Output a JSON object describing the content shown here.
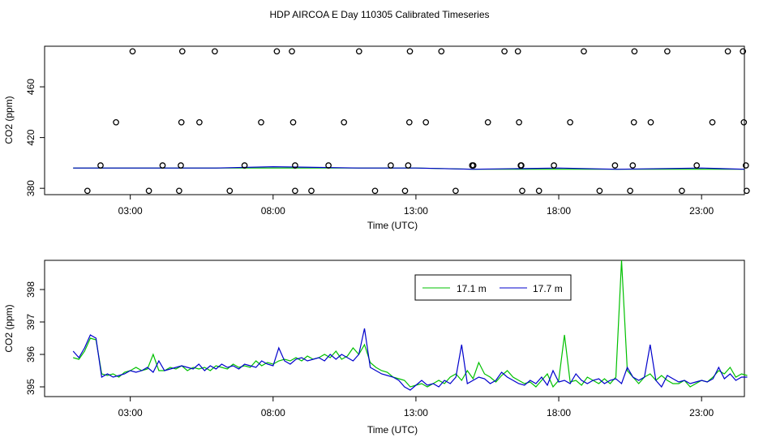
{
  "figure": {
    "title": "HDP AIRCOA E  Day 110305  Calibrated Timeseries"
  },
  "colors": {
    "series_a": "#00c000",
    "series_b": "#0000cc",
    "axis": "#000000",
    "markers": "#000000"
  },
  "chart_data": [
    {
      "type": "scatter",
      "xlabel": "Time (UTC)",
      "ylabel": "CO2 (ppm)",
      "xlim": [
        0,
        24.5
      ],
      "ylim": [
        375,
        492
      ],
      "x_ticks": [
        3,
        8,
        13,
        18,
        23
      ],
      "x_tick_labels": [
        "03:00",
        "08:00",
        "13:00",
        "18:00",
        "23:00"
      ],
      "y_ticks": [
        380,
        420,
        460
      ],
      "y_tick_labels": [
        "380",
        "420",
        "460"
      ],
      "grid": false,
      "legend": "none",
      "points": [
        {
          "x": 1.5,
          "y": 378
        },
        {
          "x": 1.96,
          "y": 398
        },
        {
          "x": 2.5,
          "y": 432
        },
        {
          "x": 3.08,
          "y": 488
        },
        {
          "x": 3.65,
          "y": 378
        },
        {
          "x": 4.13,
          "y": 398
        },
        {
          "x": 4.71,
          "y": 378
        },
        {
          "x": 4.77,
          "y": 398
        },
        {
          "x": 4.79,
          "y": 432
        },
        {
          "x": 4.82,
          "y": 488
        },
        {
          "x": 5.42,
          "y": 432
        },
        {
          "x": 5.96,
          "y": 488
        },
        {
          "x": 6.48,
          "y": 378
        },
        {
          "x": 7.0,
          "y": 398
        },
        {
          "x": 7.58,
          "y": 432
        },
        {
          "x": 8.13,
          "y": 488
        },
        {
          "x": 8.66,
          "y": 488
        },
        {
          "x": 8.7,
          "y": 432
        },
        {
          "x": 8.77,
          "y": 378
        },
        {
          "x": 8.77,
          "y": 398
        },
        {
          "x": 9.34,
          "y": 378
        },
        {
          "x": 9.94,
          "y": 398
        },
        {
          "x": 10.48,
          "y": 432
        },
        {
          "x": 11.01,
          "y": 488
        },
        {
          "x": 11.57,
          "y": 378
        },
        {
          "x": 12.12,
          "y": 398
        },
        {
          "x": 12.62,
          "y": 378
        },
        {
          "x": 12.73,
          "y": 398
        },
        {
          "x": 12.77,
          "y": 432
        },
        {
          "x": 12.79,
          "y": 488
        },
        {
          "x": 13.35,
          "y": 432
        },
        {
          "x": 13.89,
          "y": 488
        },
        {
          "x": 14.39,
          "y": 378
        },
        {
          "x": 14.97,
          "y": 398
        },
        {
          "x": 15.01,
          "y": 398
        },
        {
          "x": 15.52,
          "y": 432
        },
        {
          "x": 16.1,
          "y": 488
        },
        {
          "x": 16.57,
          "y": 488
        },
        {
          "x": 16.61,
          "y": 432
        },
        {
          "x": 16.67,
          "y": 398
        },
        {
          "x": 16.69,
          "y": 398
        },
        {
          "x": 16.72,
          "y": 378
        },
        {
          "x": 17.31,
          "y": 378
        },
        {
          "x": 17.83,
          "y": 398
        },
        {
          "x": 18.4,
          "y": 432
        },
        {
          "x": 18.88,
          "y": 488
        },
        {
          "x": 19.43,
          "y": 378
        },
        {
          "x": 19.97,
          "y": 398
        },
        {
          "x": 20.5,
          "y": 378
        },
        {
          "x": 20.59,
          "y": 398
        },
        {
          "x": 20.63,
          "y": 432
        },
        {
          "x": 20.65,
          "y": 488
        },
        {
          "x": 21.22,
          "y": 432
        },
        {
          "x": 21.8,
          "y": 488
        },
        {
          "x": 22.31,
          "y": 378
        },
        {
          "x": 22.83,
          "y": 398
        },
        {
          "x": 23.38,
          "y": 432
        },
        {
          "x": 23.92,
          "y": 488
        },
        {
          "x": 24.45,
          "y": 488
        },
        {
          "x": 24.48,
          "y": 432
        },
        {
          "x": 24.55,
          "y": 398
        },
        {
          "x": 24.58,
          "y": 378
        }
      ],
      "lines": [
        {
          "color_key": "series_a",
          "x": [
            1.0,
            3.0,
            6.0,
            8.0,
            11.0,
            13.0,
            15.0,
            18.0,
            20.0,
            23.0,
            24.5
          ],
          "y": [
            396,
            396,
            396,
            396,
            396,
            396,
            395,
            395,
            395,
            395,
            395
          ]
        },
        {
          "color_key": "series_b",
          "x": [
            1.0,
            3.0,
            6.0,
            8.0,
            11.0,
            13.0,
            15.0,
            18.0,
            20.0,
            23.0,
            24.5
          ],
          "y": [
            396,
            396,
            396,
            397,
            396,
            396,
            395,
            396,
            395,
            396,
            395
          ]
        }
      ]
    },
    {
      "type": "line",
      "xlabel": "Time (UTC)",
      "ylabel": "CO2 (ppm)",
      "xlim": [
        0,
        24.5
      ],
      "ylim": [
        394.7,
        398.9
      ],
      "x_ticks": [
        3,
        8,
        13,
        18,
        23
      ],
      "x_tick_labels": [
        "03:00",
        "08:00",
        "13:00",
        "18:00",
        "23:00"
      ],
      "y_ticks": [
        395,
        396,
        397,
        398
      ],
      "y_tick_labels": [
        "395",
        "396",
        "397",
        "398"
      ],
      "grid": false,
      "legend": "top-right",
      "series": [
        {
          "name": "17.1 m",
          "color_key": "series_a",
          "x": [
            1.0,
            1.2,
            1.4,
            1.6,
            1.8,
            2.0,
            2.2,
            2.4,
            2.6,
            2.8,
            3.0,
            3.2,
            3.4,
            3.6,
            3.8,
            4.0,
            4.2,
            4.4,
            4.6,
            4.8,
            5.0,
            5.2,
            5.4,
            5.6,
            5.8,
            6.0,
            6.2,
            6.4,
            6.6,
            6.8,
            7.0,
            7.2,
            7.4,
            7.6,
            7.8,
            8.0,
            8.2,
            8.4,
            8.6,
            8.8,
            9.0,
            9.2,
            9.4,
            9.6,
            9.8,
            10.0,
            10.2,
            10.4,
            10.6,
            10.8,
            11.0,
            11.2,
            11.4,
            11.6,
            11.8,
            12.0,
            12.2,
            12.4,
            12.6,
            12.8,
            13.0,
            13.2,
            13.4,
            13.6,
            13.8,
            14.0,
            14.2,
            14.4,
            14.6,
            14.8,
            15.0,
            15.2,
            15.4,
            15.6,
            15.8,
            16.0,
            16.2,
            16.4,
            16.6,
            16.8,
            17.0,
            17.2,
            17.4,
            17.6,
            17.8,
            18.0,
            18.2,
            18.4,
            18.6,
            18.8,
            19.0,
            19.2,
            19.4,
            19.6,
            19.8,
            20.0,
            20.2,
            20.4,
            20.6,
            20.8,
            21.0,
            21.2,
            21.4,
            21.6,
            21.8,
            22.0,
            22.2,
            22.4,
            22.6,
            22.8,
            23.0,
            23.2,
            23.4,
            23.6,
            23.8,
            24.0,
            24.2,
            24.4,
            24.6
          ],
          "y": [
            395.9,
            395.85,
            396.1,
            396.5,
            396.45,
            395.4,
            395.35,
            395.4,
            395.3,
            395.45,
            395.5,
            395.6,
            395.5,
            395.55,
            396.0,
            395.5,
            395.5,
            395.6,
            395.55,
            395.65,
            395.5,
            395.6,
            395.55,
            395.6,
            395.5,
            395.65,
            395.6,
            395.55,
            395.7,
            395.6,
            395.65,
            395.6,
            395.8,
            395.65,
            395.75,
            395.7,
            395.8,
            395.85,
            395.8,
            395.9,
            395.8,
            395.95,
            395.85,
            395.9,
            396.0,
            395.9,
            396.1,
            395.85,
            395.95,
            396.2,
            396.0,
            396.3,
            395.75,
            395.6,
            395.5,
            395.45,
            395.3,
            395.25,
            395.2,
            395.0,
            395.05,
            395.1,
            395.0,
            395.1,
            395.2,
            395.1,
            395.3,
            395.4,
            395.2,
            395.5,
            395.25,
            395.75,
            395.4,
            395.3,
            395.15,
            395.35,
            395.5,
            395.3,
            395.2,
            395.1,
            395.15,
            395.0,
            395.2,
            395.4,
            395.0,
            395.2,
            396.6,
            395.15,
            395.2,
            395.05,
            395.3,
            395.2,
            395.1,
            395.25,
            395.1,
            395.3,
            398.9,
            395.5,
            395.3,
            395.1,
            395.3,
            395.4,
            395.2,
            395.35,
            395.2,
            395.1,
            395.1,
            395.2,
            395.0,
            395.1,
            395.2,
            395.15,
            395.3,
            395.5,
            395.4,
            395.6,
            395.3,
            395.4,
            395.35
          ]
        },
        {
          "name": "17.7 m",
          "color_key": "series_b",
          "x": [
            1.0,
            1.2,
            1.4,
            1.6,
            1.8,
            2.0,
            2.2,
            2.4,
            2.6,
            2.8,
            3.0,
            3.2,
            3.4,
            3.6,
            3.8,
            4.0,
            4.2,
            4.4,
            4.6,
            4.8,
            5.0,
            5.2,
            5.4,
            5.6,
            5.8,
            6.0,
            6.2,
            6.4,
            6.6,
            6.8,
            7.0,
            7.2,
            7.4,
            7.6,
            7.8,
            8.0,
            8.2,
            8.4,
            8.6,
            8.8,
            9.0,
            9.2,
            9.4,
            9.6,
            9.8,
            10.0,
            10.2,
            10.4,
            10.6,
            10.8,
            11.0,
            11.2,
            11.4,
            11.6,
            11.8,
            12.0,
            12.2,
            12.4,
            12.6,
            12.8,
            13.0,
            13.2,
            13.4,
            13.6,
            13.8,
            14.0,
            14.2,
            14.4,
            14.6,
            14.8,
            15.0,
            15.2,
            15.4,
            15.6,
            15.8,
            16.0,
            16.2,
            16.4,
            16.6,
            16.8,
            17.0,
            17.2,
            17.4,
            17.6,
            17.8,
            18.0,
            18.2,
            18.4,
            18.6,
            18.8,
            19.0,
            19.2,
            19.4,
            19.6,
            19.8,
            20.0,
            20.2,
            20.4,
            20.6,
            20.8,
            21.0,
            21.2,
            21.4,
            21.6,
            21.8,
            22.0,
            22.2,
            22.4,
            22.6,
            22.8,
            23.0,
            23.2,
            23.4,
            23.6,
            23.8,
            24.0,
            24.2,
            24.4,
            24.6
          ],
          "y": [
            396.1,
            395.9,
            396.2,
            396.6,
            396.5,
            395.3,
            395.4,
            395.3,
            395.35,
            395.4,
            395.5,
            395.45,
            395.5,
            395.6,
            395.45,
            395.8,
            395.5,
            395.55,
            395.6,
            395.65,
            395.6,
            395.55,
            395.7,
            395.5,
            395.65,
            395.55,
            395.7,
            395.6,
            395.65,
            395.55,
            395.7,
            395.65,
            395.6,
            395.8,
            395.7,
            395.65,
            396.2,
            395.8,
            395.7,
            395.85,
            395.9,
            395.8,
            395.85,
            395.9,
            395.8,
            396.0,
            395.85,
            396.0,
            395.9,
            395.8,
            396.0,
            396.8,
            395.6,
            395.5,
            395.4,
            395.35,
            395.3,
            395.2,
            395.0,
            394.9,
            395.05,
            395.2,
            395.05,
            395.1,
            395.0,
            395.2,
            395.1,
            395.3,
            396.3,
            395.1,
            395.2,
            395.3,
            395.25,
            395.1,
            395.2,
            395.45,
            395.3,
            395.2,
            395.1,
            395.05,
            395.2,
            395.1,
            395.3,
            395.05,
            395.5,
            395.15,
            395.2,
            395.1,
            395.4,
            395.2,
            395.1,
            395.2,
            395.25,
            395.1,
            395.2,
            395.25,
            395.1,
            395.6,
            395.3,
            395.2,
            395.3,
            396.3,
            395.2,
            395.0,
            395.35,
            395.25,
            395.15,
            395.2,
            395.1,
            395.15,
            395.2,
            395.15,
            395.25,
            395.6,
            395.25,
            395.4,
            395.2,
            395.3,
            395.3
          ]
        }
      ]
    }
  ]
}
